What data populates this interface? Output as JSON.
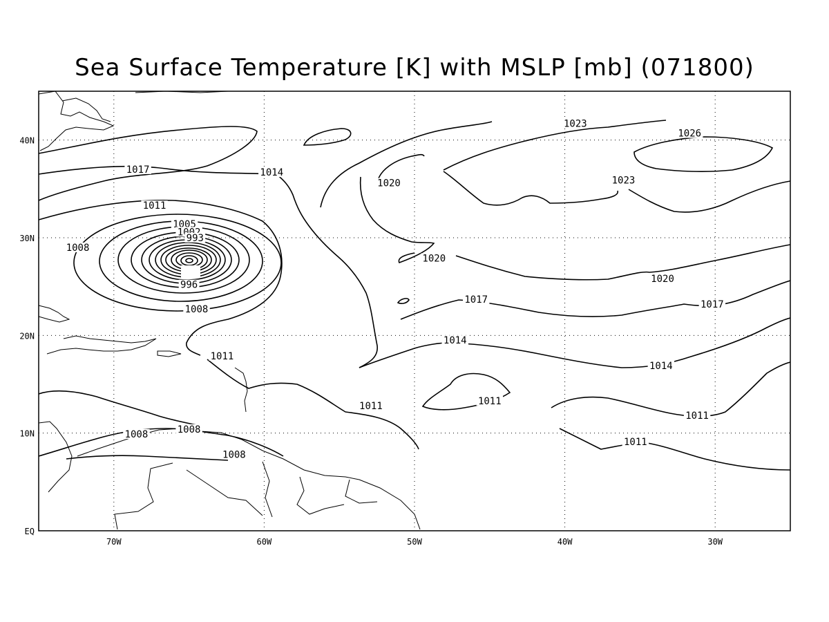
{
  "title": "Sea Surface Temperature [K] with MSLP [mb] (071800)",
  "map": {
    "lon_range": [
      -75,
      -25
    ],
    "lat_range": [
      0,
      45
    ],
    "lat_ticks": [
      {
        "v": 40,
        "label": "40N"
      },
      {
        "v": 30,
        "label": "30N"
      },
      {
        "v": 20,
        "label": "20N"
      },
      {
        "v": 10,
        "label": "10N"
      },
      {
        "v": 0,
        "label": "EQ"
      }
    ],
    "lon_ticks": [
      {
        "v": -70,
        "label": "70W"
      },
      {
        "v": -60,
        "label": "60W"
      },
      {
        "v": -50,
        "label": "50W"
      },
      {
        "v": -40,
        "label": "40W"
      },
      {
        "v": -30,
        "label": "30W"
      }
    ],
    "gridlines": "dotted",
    "line_color": "#000000"
  },
  "contour_labels": [
    {
      "text": "1017",
      "lon": -68.4,
      "lat": 36.8
    },
    {
      "text": "1014",
      "lon": -59.5,
      "lat": 36.5
    },
    {
      "text": "1011",
      "lon": -67.3,
      "lat": 33.1
    },
    {
      "text": "1005",
      "lon": -65.3,
      "lat": 31.2
    },
    {
      "text": "1002",
      "lon": -65.0,
      "lat": 30.4
    },
    {
      "text": "993",
      "lon": -64.6,
      "lat": 29.8
    },
    {
      "text": "1008",
      "lon": -72.4,
      "lat": 28.8
    },
    {
      "text": "996",
      "lon": -65.0,
      "lat": 25.0
    },
    {
      "text": "1008",
      "lon": -64.5,
      "lat": 22.5
    },
    {
      "text": "1011",
      "lon": -62.8,
      "lat": 17.7
    },
    {
      "text": "1020",
      "lon": -51.7,
      "lat": 35.4
    },
    {
      "text": "1023",
      "lon": -39.3,
      "lat": 41.5
    },
    {
      "text": "1026",
      "lon": -31.7,
      "lat": 40.5
    },
    {
      "text": "1023",
      "lon": -36.1,
      "lat": 35.7
    },
    {
      "text": "1020",
      "lon": -48.7,
      "lat": 27.7
    },
    {
      "text": "1020",
      "lon": -33.5,
      "lat": 25.6
    },
    {
      "text": "1017",
      "lon": -45.9,
      "lat": 23.5
    },
    {
      "text": "1017",
      "lon": -30.2,
      "lat": 23.0
    },
    {
      "text": "1014",
      "lon": -47.3,
      "lat": 19.3
    },
    {
      "text": "1014",
      "lon": -33.6,
      "lat": 16.7
    },
    {
      "text": "1011",
      "lon": -45.0,
      "lat": 13.1
    },
    {
      "text": "1011",
      "lon": -52.9,
      "lat": 12.6
    },
    {
      "text": "1011",
      "lon": -31.2,
      "lat": 11.6
    },
    {
      "text": "1011",
      "lon": -35.3,
      "lat": 8.9
    },
    {
      "text": "1008",
      "lon": -68.5,
      "lat": 9.7
    },
    {
      "text": "1008",
      "lon": -65.0,
      "lat": 10.2
    },
    {
      "text": "1008",
      "lon": -62.0,
      "lat": 7.6
    }
  ]
}
